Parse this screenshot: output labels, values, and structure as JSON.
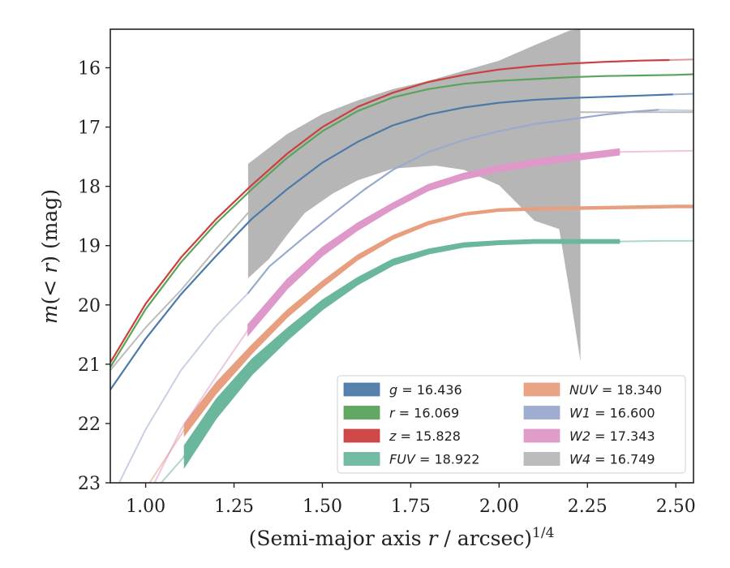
{
  "chart_data": {
    "type": "line",
    "xlabel_parts": [
      "(Semi-major axis ",
      "r",
      " / arcsec)",
      "1/4"
    ],
    "ylabel_parts": [
      "m",
      "(< ",
      "r",
      ") (mag)"
    ],
    "xlim": [
      0.9,
      2.55
    ],
    "ylim": [
      15.35,
      23.0
    ],
    "y_inverted": true,
    "x_ticks": [
      1.0,
      1.25,
      1.5,
      1.75,
      2.0,
      2.25,
      2.5
    ],
    "x_tick_labels": [
      "1.00",
      "1.25",
      "1.50",
      "1.75",
      "2.00",
      "2.25",
      "2.50"
    ],
    "y_ticks": [
      16,
      17,
      18,
      19,
      20,
      21,
      22,
      23
    ],
    "y_tick_labels": [
      "16",
      "17",
      "18",
      "19",
      "20",
      "21",
      "22",
      "23"
    ],
    "legend_placement": "lower-right",
    "series": [
      {
        "name": "g",
        "legend_label": "g = 16.436",
        "color": "#4c7aa8",
        "width": 2.2,
        "x": [
          0.9,
          1.0,
          1.1,
          1.2,
          1.3,
          1.4,
          1.5,
          1.6,
          1.7,
          1.8,
          1.9,
          2.0,
          2.1,
          2.2,
          2.3,
          2.4,
          2.49
        ],
        "y": [
          21.43,
          20.57,
          19.82,
          19.17,
          18.55,
          18.05,
          17.6,
          17.25,
          16.97,
          16.79,
          16.67,
          16.59,
          16.54,
          16.51,
          16.49,
          16.47,
          16.45
        ],
        "faint_x": [
          2.49,
          2.55
        ],
        "faint_y": [
          16.45,
          16.44
        ]
      },
      {
        "name": "r",
        "legend_label": "r = 16.069",
        "color": "#5aa35a",
        "width": 2.2,
        "x": [
          0.9,
          1.0,
          1.1,
          1.2,
          1.3,
          1.4,
          1.5,
          1.6,
          1.7,
          1.8,
          1.9,
          2.0,
          2.1,
          2.2,
          2.3,
          2.4,
          2.5,
          2.55
        ],
        "y": [
          21.05,
          20.07,
          19.28,
          18.62,
          18.05,
          17.52,
          17.07,
          16.73,
          16.5,
          16.36,
          16.27,
          16.22,
          16.19,
          16.16,
          16.14,
          16.13,
          16.12,
          16.11
        ]
      },
      {
        "name": "z",
        "legend_label": "z = 15.828",
        "color": "#cc3f3f",
        "width": 2.2,
        "x": [
          0.9,
          1.0,
          1.1,
          1.2,
          1.3,
          1.4,
          1.5,
          1.6,
          1.7,
          1.8,
          1.9,
          2.0,
          2.1,
          2.2,
          2.3,
          2.4,
          2.48
        ],
        "y": [
          20.97,
          19.98,
          19.2,
          18.55,
          17.98,
          17.45,
          17.0,
          16.66,
          16.42,
          16.24,
          16.12,
          16.03,
          15.97,
          15.93,
          15.9,
          15.88,
          15.87
        ],
        "faint_x": [
          2.48,
          2.55
        ],
        "faint_y": [
          15.87,
          15.86
        ]
      },
      {
        "name": "FUV",
        "legend_label": "FUV = 18.922",
        "color": "#6bb79e",
        "width": 2.5,
        "x": [
          1.11,
          1.2,
          1.3,
          1.4,
          1.5,
          1.6,
          1.7,
          1.8,
          1.9,
          2.0,
          2.1,
          2.2,
          2.34
        ],
        "y": [
          22.55,
          21.75,
          21.05,
          20.5,
          20.0,
          19.6,
          19.28,
          19.1,
          18.99,
          18.95,
          18.93,
          18.93,
          18.93
        ],
        "band": [
          0.18,
          0.16,
          0.13,
          0.1,
          0.08,
          0.06,
          0.05,
          0.04,
          0.035,
          0.03,
          0.03,
          0.03,
          0.03
        ],
        "faint_x": [
          0.9,
          1.0,
          1.11
        ],
        "faint_y": [
          24.3,
          23.3,
          22.55
        ],
        "faint2_x": [
          2.34,
          2.45,
          2.55
        ],
        "faint2_y": [
          18.93,
          18.92,
          18.92
        ]
      },
      {
        "name": "NUV",
        "legend_label": "NUV = 18.340",
        "color": "#e89f7f",
        "width": 2.5,
        "x": [
          1.11,
          1.2,
          1.3,
          1.4,
          1.5,
          1.6,
          1.7,
          1.8,
          1.9,
          2.0,
          2.1,
          2.2,
          2.3,
          2.4,
          2.5,
          2.55
        ],
        "y": [
          22.1,
          21.4,
          20.75,
          20.15,
          19.65,
          19.2,
          18.86,
          18.62,
          18.47,
          18.4,
          18.38,
          18.37,
          18.36,
          18.35,
          18.34,
          18.34
        ],
        "band": [
          0.1,
          0.09,
          0.07,
          0.06,
          0.05,
          0.04,
          0.03,
          0.025,
          0.02,
          0.02,
          0.02,
          0.02,
          0.02,
          0.02,
          0.02,
          0.02
        ],
        "faint_x": [
          0.9,
          1.0,
          1.11
        ],
        "faint_y": [
          24.1,
          23.1,
          22.1
        ]
      },
      {
        "name": "W1",
        "legend_label": "W1 = 16.600",
        "color": "#9aa9ce",
        "width": 2.2,
        "x": [
          1.29,
          1.35,
          1.45,
          1.54,
          1.62,
          1.7,
          1.8,
          1.9,
          2.0,
          2.1,
          2.2,
          2.3,
          2.38,
          2.45
        ],
        "y": [
          19.8,
          19.35,
          18.85,
          18.42,
          18.05,
          17.72,
          17.42,
          17.22,
          17.07,
          16.95,
          16.87,
          16.79,
          16.74,
          16.71
        ],
        "faint_x": [
          0.9,
          1.0,
          1.1,
          1.2,
          1.29
        ],
        "faint_y": [
          23.3,
          22.1,
          21.1,
          20.35,
          19.8
        ],
        "faint2_x": [
          2.45,
          2.55
        ],
        "faint2_y": [
          16.71,
          16.72
        ]
      },
      {
        "name": "W2",
        "legend_label": "W2 = 17.343",
        "color": "#de98c9",
        "width": 2.5,
        "x": [
          1.29,
          1.4,
          1.5,
          1.6,
          1.7,
          1.8,
          1.9,
          2.0,
          2.1,
          2.2,
          2.3,
          2.34
        ],
        "y": [
          20.42,
          19.65,
          19.1,
          18.68,
          18.33,
          18.02,
          17.83,
          17.7,
          17.6,
          17.52,
          17.45,
          17.42
        ],
        "band": [
          0.09,
          0.08,
          0.07,
          0.06,
          0.05,
          0.05,
          0.05,
          0.05,
          0.05,
          0.05,
          0.05,
          0.05
        ],
        "faint_x": [
          0.9,
          1.0,
          1.1,
          1.2,
          1.29
        ],
        "faint_y": [
          24.6,
          23.3,
          22.1,
          21.2,
          20.42
        ],
        "faint2_x": [
          2.34,
          2.45,
          2.55
        ],
        "faint2_y": [
          17.42,
          17.41,
          17.4
        ]
      },
      {
        "name": "W4",
        "legend_label": "W4 = 16.749",
        "color": "#b5b5b5",
        "width": 2.0,
        "x": [
          0.9,
          1.0,
          1.1,
          1.2,
          1.3,
          1.4,
          1.5,
          1.6,
          1.7,
          1.8,
          1.9,
          2.0,
          2.1,
          2.2,
          2.3,
          2.4,
          2.55
        ],
        "y": [
          21.1,
          20.38,
          19.75,
          19.05,
          18.38,
          17.85,
          17.42,
          17.12,
          16.92,
          16.82,
          16.77,
          16.75,
          16.75,
          16.75,
          16.75,
          16.75,
          16.75
        ],
        "band_upper_x": [
          1.29,
          1.4,
          1.5,
          1.6,
          1.7,
          1.8,
          1.9,
          2.0,
          2.1,
          2.2,
          2.23
        ],
        "band_upper_y": [
          17.62,
          17.12,
          16.78,
          16.55,
          16.36,
          16.22,
          16.05,
          15.88,
          15.62,
          15.37,
          15.35
        ],
        "band_lower_x": [
          1.29,
          1.35,
          1.4,
          1.45,
          1.53,
          1.6,
          1.7,
          1.82,
          1.9,
          2.0,
          2.05,
          2.1,
          2.17,
          2.2,
          2.23
        ],
        "band_lower_y": [
          19.55,
          19.22,
          18.82,
          18.45,
          18.12,
          17.9,
          17.7,
          17.65,
          17.72,
          17.98,
          18.28,
          18.58,
          18.72,
          19.8,
          20.95
        ]
      }
    ]
  }
}
